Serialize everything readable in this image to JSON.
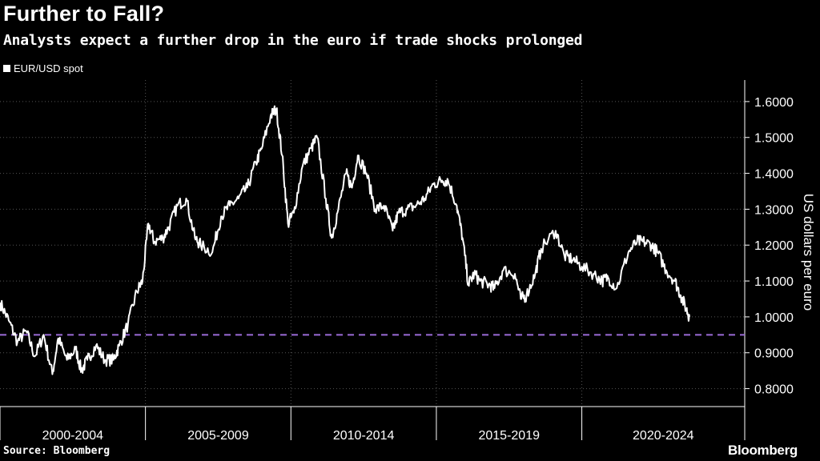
{
  "header": {
    "title": "Further to Fall?",
    "subtitle": "Analysts expect a further drop in the euro if trade shocks prolonged"
  },
  "legend": {
    "label": "EUR/USD spot"
  },
  "footer": {
    "source": "Source: Bloomberg",
    "brand": "Bloomberg"
  },
  "colors": {
    "background": "#000000",
    "series": "#ffffff",
    "reference_line": "#9b6bd8",
    "grid": "#555555"
  },
  "chart_data": {
    "type": "line",
    "xlabel": "",
    "ylabel": "US dollars per euro",
    "ylim": [
      0.75,
      1.66
    ],
    "y_ticks": [
      "0.8000",
      "0.9000",
      "1.0000",
      "1.1000",
      "1.2000",
      "1.3000",
      "1.4000",
      "1.5000",
      "1.6000"
    ],
    "x_range": [
      1999.0,
      2024.6
    ],
    "x_categories": [
      "2000-2004",
      "2005-2009",
      "2010-2014",
      "2015-2019",
      "2020-2024"
    ],
    "reference_line": {
      "value": 0.95,
      "style": "dashed"
    },
    "grid": true,
    "series": [
      {
        "name": "EUR/USD spot",
        "points": [
          [
            1999.0,
            1.04
          ],
          [
            1999.3,
            0.99
          ],
          [
            1999.6,
            0.93
          ],
          [
            1999.9,
            0.96
          ],
          [
            2000.2,
            0.89
          ],
          [
            2000.5,
            0.95
          ],
          [
            2000.8,
            0.84
          ],
          [
            2001.0,
            0.94
          ],
          [
            2001.3,
            0.88
          ],
          [
            2001.6,
            0.91
          ],
          [
            2001.8,
            0.85
          ],
          [
            2002.0,
            0.88
          ],
          [
            2002.3,
            0.92
          ],
          [
            2002.6,
            0.88
          ],
          [
            2002.9,
            0.88
          ],
          [
            2003.1,
            0.92
          ],
          [
            2003.4,
            0.98
          ],
          [
            2003.7,
            1.07
          ],
          [
            2003.9,
            1.1
          ],
          [
            2004.1,
            1.26
          ],
          [
            2004.3,
            1.21
          ],
          [
            2004.6,
            1.22
          ],
          [
            2004.8,
            1.25
          ],
          [
            2005.1,
            1.31
          ],
          [
            2005.4,
            1.33
          ],
          [
            2005.7,
            1.22
          ],
          [
            2005.9,
            1.2
          ],
          [
            2006.3,
            1.18
          ],
          [
            2006.6,
            1.28
          ],
          [
            2006.9,
            1.31
          ],
          [
            2007.2,
            1.33
          ],
          [
            2007.5,
            1.36
          ],
          [
            2007.8,
            1.43
          ],
          [
            2008.0,
            1.47
          ],
          [
            2008.3,
            1.56
          ],
          [
            2008.5,
            1.58
          ],
          [
            2008.7,
            1.45
          ],
          [
            2008.9,
            1.26
          ],
          [
            2009.1,
            1.29
          ],
          [
            2009.4,
            1.42
          ],
          [
            2009.7,
            1.47
          ],
          [
            2009.9,
            1.5
          ],
          [
            2010.2,
            1.33
          ],
          [
            2010.4,
            1.22
          ],
          [
            2010.6,
            1.29
          ],
          [
            2010.9,
            1.4
          ],
          [
            2011.1,
            1.36
          ],
          [
            2011.3,
            1.45
          ],
          [
            2011.6,
            1.4
          ],
          [
            2011.9,
            1.3
          ],
          [
            2012.2,
            1.31
          ],
          [
            2012.5,
            1.24
          ],
          [
            2012.7,
            1.29
          ],
          [
            2013.0,
            1.3
          ],
          [
            2013.3,
            1.31
          ],
          [
            2013.6,
            1.33
          ],
          [
            2013.9,
            1.37
          ],
          [
            2014.2,
            1.38
          ],
          [
            2014.4,
            1.38
          ],
          [
            2014.7,
            1.31
          ],
          [
            2014.9,
            1.22
          ],
          [
            2015.1,
            1.09
          ],
          [
            2015.3,
            1.12
          ],
          [
            2015.5,
            1.1
          ],
          [
            2015.8,
            1.09
          ],
          [
            2016.0,
            1.08
          ],
          [
            2016.3,
            1.13
          ],
          [
            2016.7,
            1.12
          ],
          [
            2016.9,
            1.05
          ],
          [
            2017.1,
            1.06
          ],
          [
            2017.4,
            1.12
          ],
          [
            2017.6,
            1.19
          ],
          [
            2018.1,
            1.24
          ],
          [
            2018.4,
            1.17
          ],
          [
            2018.7,
            1.16
          ],
          [
            2019.0,
            1.14
          ],
          [
            2019.4,
            1.12
          ],
          [
            2019.7,
            1.1
          ],
          [
            2019.9,
            1.11
          ],
          [
            2020.2,
            1.08
          ],
          [
            2020.6,
            1.18
          ],
          [
            2020.9,
            1.21
          ],
          [
            2021.1,
            1.21
          ],
          [
            2021.4,
            1.2
          ],
          [
            2021.6,
            1.18
          ],
          [
            2021.9,
            1.13
          ],
          [
            2022.2,
            1.1
          ],
          [
            2022.4,
            1.06
          ],
          [
            2022.6,
            1.02
          ],
          [
            2022.7,
            1.0
          ]
        ]
      }
    ]
  }
}
